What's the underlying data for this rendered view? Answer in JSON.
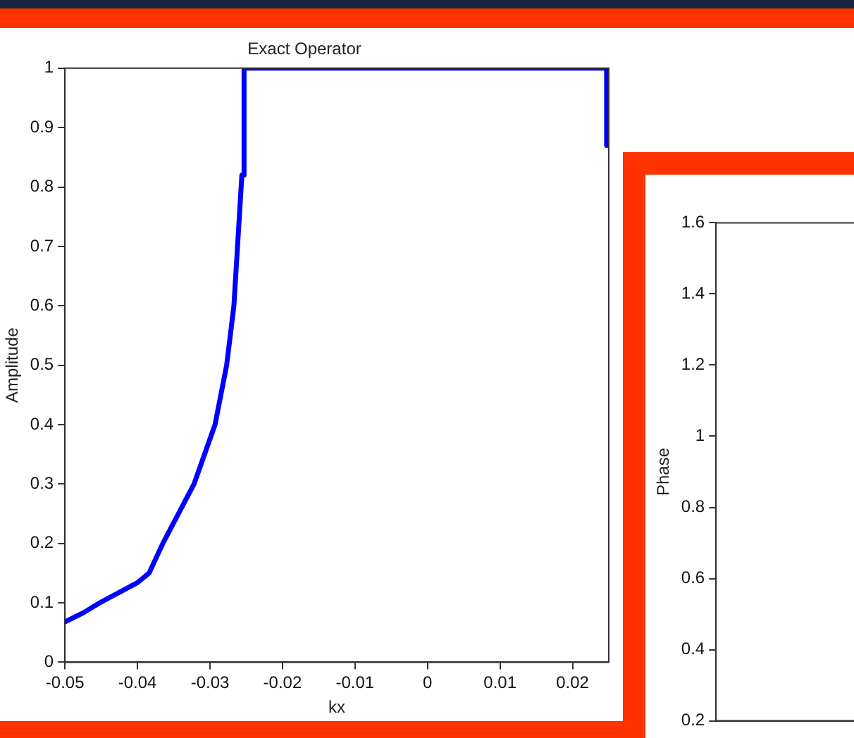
{
  "chart_data": [
    {
      "type": "line",
      "title": "Exact Operator",
      "xlabel": "kx",
      "ylabel": "Amplitude",
      "xlim": [
        -0.05,
        0.025
      ],
      "xticks": [
        -0.05,
        -0.04,
        -0.03,
        -0.02,
        -0.01,
        0,
        0.01,
        0.02
      ],
      "ylim": [
        0,
        1
      ],
      "yticks": [
        0,
        0.1,
        0.2,
        0.3,
        0.4,
        0.5,
        0.6,
        0.7,
        0.8,
        0.9,
        1
      ],
      "grid": false,
      "legend": false,
      "marker": "none",
      "line_style": "solid",
      "series": [
        {
          "color": "#0000ff",
          "x": [
            -0.05,
            -0.0475,
            -0.0452,
            -0.04,
            -0.0384,
            -0.0365,
            -0.0322,
            -0.0293,
            -0.0277,
            -0.0267,
            -0.0262,
            -0.0256,
            -0.0253,
            -0.0253,
            0.0247,
            0.0247
          ],
          "values": [
            0.068,
            0.083,
            0.1,
            0.134,
            0.15,
            0.2,
            0.3,
            0.4,
            0.5,
            0.6,
            0.7,
            0.82,
            0.82,
            1,
            1,
            0.87
          ]
        }
      ]
    },
    {
      "type": "line",
      "ylabel": "Phase",
      "categories": [
        null,
        null,
        null
      ],
      "ylim": [
        0.2,
        1.6
      ],
      "yticks": [
        0.2,
        0.4,
        0.6,
        0.8,
        1,
        1.2,
        1.4,
        1.6
      ],
      "tick_labels": "y",
      "grid": false,
      "legend": false,
      "series": [
        {
          "color": "#0000ff",
          "values": [
            null,
            null,
            null
          ]
        }
      ]
    }
  ]
}
